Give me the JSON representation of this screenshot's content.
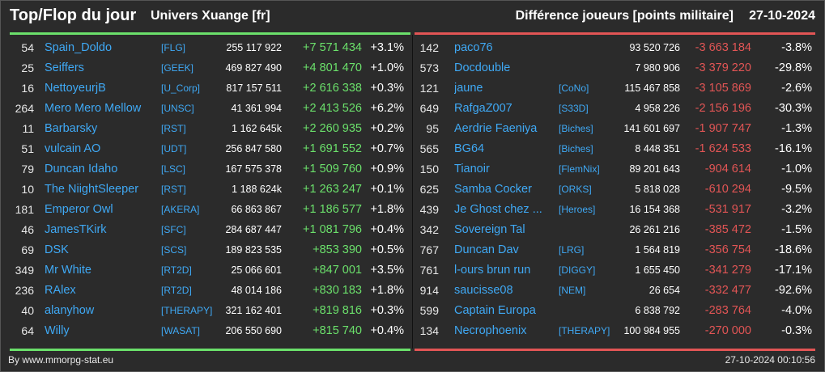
{
  "header": {
    "title": "Top/Flop du jour",
    "universe": "Univers Xuange [fr]",
    "diff_label": "Différence joueurs [points militaire]",
    "date": "27-10-2024"
  },
  "colors": {
    "background": "#2b2b2b",
    "name_link": "#3fa9f5",
    "gain": "#6be06b",
    "loss": "#e25555"
  },
  "top": [
    {
      "rank": "54",
      "name": "Spain_Doldo",
      "alliance": "[FLG]",
      "points": "255 117 922",
      "delta": "+7 571 434",
      "pct": "+3.1%"
    },
    {
      "rank": "25",
      "name": "Seiffers",
      "alliance": "[GEEK]",
      "points": "469 827 490",
      "delta": "+4 801 470",
      "pct": "+1.0%"
    },
    {
      "rank": "16",
      "name": "NettoyeurjB",
      "alliance": "[U_Corp]",
      "points": "817 157 511",
      "delta": "+2 616 338",
      "pct": "+0.3%"
    },
    {
      "rank": "264",
      "name": "Mero Mero Mellow",
      "alliance": "[UNSC]",
      "points": "41 361 994",
      "delta": "+2 413 526",
      "pct": "+6.2%"
    },
    {
      "rank": "11",
      "name": "Barbarsky",
      "alliance": "[RST]",
      "points": "1 162 645k",
      "delta": "+2 260 935",
      "pct": "+0.2%"
    },
    {
      "rank": "51",
      "name": "vulcain AO",
      "alliance": "[UDT]",
      "points": "256 847 580",
      "delta": "+1 691 552",
      "pct": "+0.7%"
    },
    {
      "rank": "79",
      "name": "Duncan Idaho",
      "alliance": "[LSC]",
      "points": "167 575 378",
      "delta": "+1 509 760",
      "pct": "+0.9%"
    },
    {
      "rank": "10",
      "name": "The NiightSleeper",
      "alliance": "[RST]",
      "points": "1 188 624k",
      "delta": "+1 263 247",
      "pct": "+0.1%"
    },
    {
      "rank": "181",
      "name": "Emperor Owl",
      "alliance": "[AKERA]",
      "points": "66 863 867",
      "delta": "+1 186 577",
      "pct": "+1.8%"
    },
    {
      "rank": "46",
      "name": "JamesTKirk",
      "alliance": "[SFC]",
      "points": "284 687 447",
      "delta": "+1 081 796",
      "pct": "+0.4%"
    },
    {
      "rank": "69",
      "name": "DSK",
      "alliance": "[SCS]",
      "points": "189 823 535",
      "delta": "+853 390",
      "pct": "+0.5%"
    },
    {
      "rank": "349",
      "name": "Mr White",
      "alliance": "[RT2D]",
      "points": "25 066 601",
      "delta": "+847 001",
      "pct": "+3.5%"
    },
    {
      "rank": "236",
      "name": "RAlex",
      "alliance": "[RT2D]",
      "points": "48 014 186",
      "delta": "+830 183",
      "pct": "+1.8%"
    },
    {
      "rank": "40",
      "name": "alanyhow",
      "alliance": "[THERAPY]",
      "points": "321 162 401",
      "delta": "+819 816",
      "pct": "+0.3%"
    },
    {
      "rank": "64",
      "name": "Willy",
      "alliance": "[WASAT]",
      "points": "206 550 690",
      "delta": "+815 740",
      "pct": "+0.4%"
    }
  ],
  "flop": [
    {
      "rank": "142",
      "name": "paco76",
      "alliance": "",
      "points": "93 520 726",
      "delta": "-3 663 184",
      "pct": "-3.8%"
    },
    {
      "rank": "573",
      "name": "Docdouble",
      "alliance": "",
      "points": "7 980 906",
      "delta": "-3 379 220",
      "pct": "-29.8%"
    },
    {
      "rank": "121",
      "name": "jaune",
      "alliance": "[CoNo]",
      "points": "115 467 858",
      "delta": "-3 105 869",
      "pct": "-2.6%"
    },
    {
      "rank": "649",
      "name": "RafgaZ007",
      "alliance": "[S33D]",
      "points": "4 958 226",
      "delta": "-2 156 196",
      "pct": "-30.3%"
    },
    {
      "rank": "95",
      "name": "Aerdrie Faeniya",
      "alliance": "[Biches]",
      "points": "141 601 697",
      "delta": "-1 907 747",
      "pct": "-1.3%"
    },
    {
      "rank": "565",
      "name": "BG64",
      "alliance": "[Biches]",
      "points": "8 448 351",
      "delta": "-1 624 533",
      "pct": "-16.1%"
    },
    {
      "rank": "150",
      "name": "Tianoir",
      "alliance": "[FlemNix]",
      "points": "89 201 643",
      "delta": "-904 614",
      "pct": "-1.0%"
    },
    {
      "rank": "625",
      "name": "Samba Cocker",
      "alliance": "[ORKS]",
      "points": "5 818 028",
      "delta": "-610 294",
      "pct": "-9.5%"
    },
    {
      "rank": "439",
      "name": "Je Ghost chez ...",
      "alliance": "[Heroes]",
      "points": "16 154 368",
      "delta": "-531 917",
      "pct": "-3.2%"
    },
    {
      "rank": "342",
      "name": "Sovereign Tal",
      "alliance": "",
      "points": "26 261 216",
      "delta": "-385 472",
      "pct": "-1.5%"
    },
    {
      "rank": "767",
      "name": "Duncan Dav",
      "alliance": "[LRG]",
      "points": "1 564 819",
      "delta": "-356 754",
      "pct": "-18.6%"
    },
    {
      "rank": "761",
      "name": "l-ours brun run",
      "alliance": "[DIGGY]",
      "points": "1 655 450",
      "delta": "-341 279",
      "pct": "-17.1%"
    },
    {
      "rank": "914",
      "name": "saucisse08",
      "alliance": "[NEM]",
      "points": "26 654",
      "delta": "-332 477",
      "pct": "-92.6%"
    },
    {
      "rank": "599",
      "name": "Captain Europa",
      "alliance": "",
      "points": "6 838 792",
      "delta": "-283 764",
      "pct": "-4.0%"
    },
    {
      "rank": "134",
      "name": "Necrophoenix",
      "alliance": "[THERAPY]",
      "points": "100 984 955",
      "delta": "-270 000",
      "pct": "-0.3%"
    }
  ],
  "footer": {
    "source": "By www.mmorpg-stat.eu",
    "timestamp": "27-10-2024 00:10:56"
  }
}
